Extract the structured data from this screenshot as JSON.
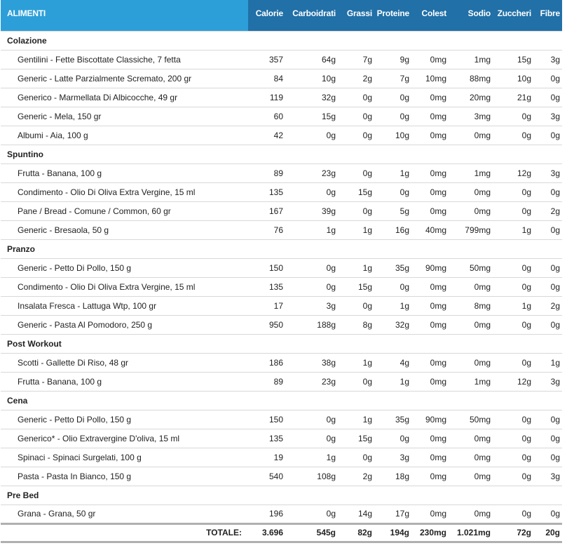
{
  "headers": {
    "name": "ALIMENTI",
    "calories": "Calorie",
    "carbs": "Carboidrati",
    "fat": "Grassi",
    "protein": "Proteine",
    "cholesterol": "Colest",
    "sodium": "Sodio",
    "sugar": "Zuccheri",
    "fiber": "Fibre"
  },
  "colors": {
    "header_bg": "#2d9fd8",
    "nutrient_header_bg": "#2170a7"
  },
  "meals": [
    {
      "name": "Colazione",
      "items": [
        {
          "food": "Gentilini - Fette Biscottate Classiche, 7 fetta",
          "calories": "357",
          "carbs": "64g",
          "fat": "7g",
          "protein": "9g",
          "cholesterol": "0mg",
          "sodium": "1mg",
          "sugar": "15g",
          "fiber": "3g"
        },
        {
          "food": "Generic - Latte Parzialmente Scremato, 200 gr",
          "calories": "84",
          "carbs": "10g",
          "fat": "2g",
          "protein": "7g",
          "cholesterol": "10mg",
          "sodium": "88mg",
          "sugar": "10g",
          "fiber": "0g"
        },
        {
          "food": "Generico - Marmellata Di Albicocche, 49 gr",
          "calories": "119",
          "carbs": "32g",
          "fat": "0g",
          "protein": "0g",
          "cholesterol": "0mg",
          "sodium": "20mg",
          "sugar": "21g",
          "fiber": "0g"
        },
        {
          "food": "Generic - Mela, 150 gr",
          "calories": "60",
          "carbs": "15g",
          "fat": "0g",
          "protein": "0g",
          "cholesterol": "0mg",
          "sodium": "3mg",
          "sugar": "0g",
          "fiber": "3g"
        },
        {
          "food": "Albumi - Aia, 100 g",
          "calories": "42",
          "carbs": "0g",
          "fat": "0g",
          "protein": "10g",
          "cholesterol": "0mg",
          "sodium": "0mg",
          "sugar": "0g",
          "fiber": "0g"
        }
      ]
    },
    {
      "name": "Spuntino",
      "items": [
        {
          "food": "Frutta - Banana, 100 g",
          "calories": "89",
          "carbs": "23g",
          "fat": "0g",
          "protein": "1g",
          "cholesterol": "0mg",
          "sodium": "1mg",
          "sugar": "12g",
          "fiber": "3g"
        },
        {
          "food": "Condimento - Olio Di Oliva Extra Vergine, 15 ml",
          "calories": "135",
          "carbs": "0g",
          "fat": "15g",
          "protein": "0g",
          "cholesterol": "0mg",
          "sodium": "0mg",
          "sugar": "0g",
          "fiber": "0g"
        },
        {
          "food": "Pane / Bread - Comune / Common, 60 gr",
          "calories": "167",
          "carbs": "39g",
          "fat": "0g",
          "protein": "5g",
          "cholesterol": "0mg",
          "sodium": "0mg",
          "sugar": "0g",
          "fiber": "2g"
        },
        {
          "food": "Generic - Bresaola, 50 g",
          "calories": "76",
          "carbs": "1g",
          "fat": "1g",
          "protein": "16g",
          "cholesterol": "40mg",
          "sodium": "799mg",
          "sugar": "1g",
          "fiber": "0g"
        }
      ]
    },
    {
      "name": "Pranzo",
      "items": [
        {
          "food": "Generic - Petto Di Pollo, 150 g",
          "calories": "150",
          "carbs": "0g",
          "fat": "1g",
          "protein": "35g",
          "cholesterol": "90mg",
          "sodium": "50mg",
          "sugar": "0g",
          "fiber": "0g"
        },
        {
          "food": "Condimento - Olio Di Oliva Extra Vergine, 15 ml",
          "calories": "135",
          "carbs": "0g",
          "fat": "15g",
          "protein": "0g",
          "cholesterol": "0mg",
          "sodium": "0mg",
          "sugar": "0g",
          "fiber": "0g"
        },
        {
          "food": "Insalata Fresca - Lattuga Wtp, 100 gr",
          "calories": "17",
          "carbs": "3g",
          "fat": "0g",
          "protein": "1g",
          "cholesterol": "0mg",
          "sodium": "8mg",
          "sugar": "1g",
          "fiber": "2g"
        },
        {
          "food": "Generic - Pasta Al Pomodoro, 250 g",
          "calories": "950",
          "carbs": "188g",
          "fat": "8g",
          "protein": "32g",
          "cholesterol": "0mg",
          "sodium": "0mg",
          "sugar": "0g",
          "fiber": "0g"
        }
      ]
    },
    {
      "name": "Post Workout",
      "items": [
        {
          "food": "Scotti - Gallette Di Riso, 48 gr",
          "calories": "186",
          "carbs": "38g",
          "fat": "1g",
          "protein": "4g",
          "cholesterol": "0mg",
          "sodium": "0mg",
          "sugar": "0g",
          "fiber": "1g"
        },
        {
          "food": "Frutta - Banana, 100 g",
          "calories": "89",
          "carbs": "23g",
          "fat": "0g",
          "protein": "1g",
          "cholesterol": "0mg",
          "sodium": "1mg",
          "sugar": "12g",
          "fiber": "3g"
        }
      ]
    },
    {
      "name": "Cena",
      "items": [
        {
          "food": "Generic - Petto Di Pollo, 150 g",
          "calories": "150",
          "carbs": "0g",
          "fat": "1g",
          "protein": "35g",
          "cholesterol": "90mg",
          "sodium": "50mg",
          "sugar": "0g",
          "fiber": "0g"
        },
        {
          "food": "Generico* - Olio Extravergine D'oliva, 15 ml",
          "calories": "135",
          "carbs": "0g",
          "fat": "15g",
          "protein": "0g",
          "cholesterol": "0mg",
          "sodium": "0mg",
          "sugar": "0g",
          "fiber": "0g"
        },
        {
          "food": "Spinaci - Spinaci Surgelati, 100 g",
          "calories": "19",
          "carbs": "1g",
          "fat": "0g",
          "protein": "3g",
          "cholesterol": "0mg",
          "sodium": "0mg",
          "sugar": "0g",
          "fiber": "0g"
        },
        {
          "food": "Pasta - Pasta In Bianco, 150 g",
          "calories": "540",
          "carbs": "108g",
          "fat": "2g",
          "protein": "18g",
          "cholesterol": "0mg",
          "sodium": "0mg",
          "sugar": "0g",
          "fiber": "3g"
        }
      ]
    },
    {
      "name": "Pre Bed",
      "items": [
        {
          "food": "Grana - Grana, 50 gr",
          "calories": "196",
          "carbs": "0g",
          "fat": "14g",
          "protein": "17g",
          "cholesterol": "0mg",
          "sodium": "0mg",
          "sugar": "0g",
          "fiber": "0g"
        }
      ]
    }
  ],
  "totals": {
    "label": "TOTALE:",
    "calories": "3.696",
    "carbs": "545g",
    "fat": "82g",
    "protein": "194g",
    "cholesterol": "230mg",
    "sodium": "1.021mg",
    "sugar": "72g",
    "fiber": "20g"
  }
}
